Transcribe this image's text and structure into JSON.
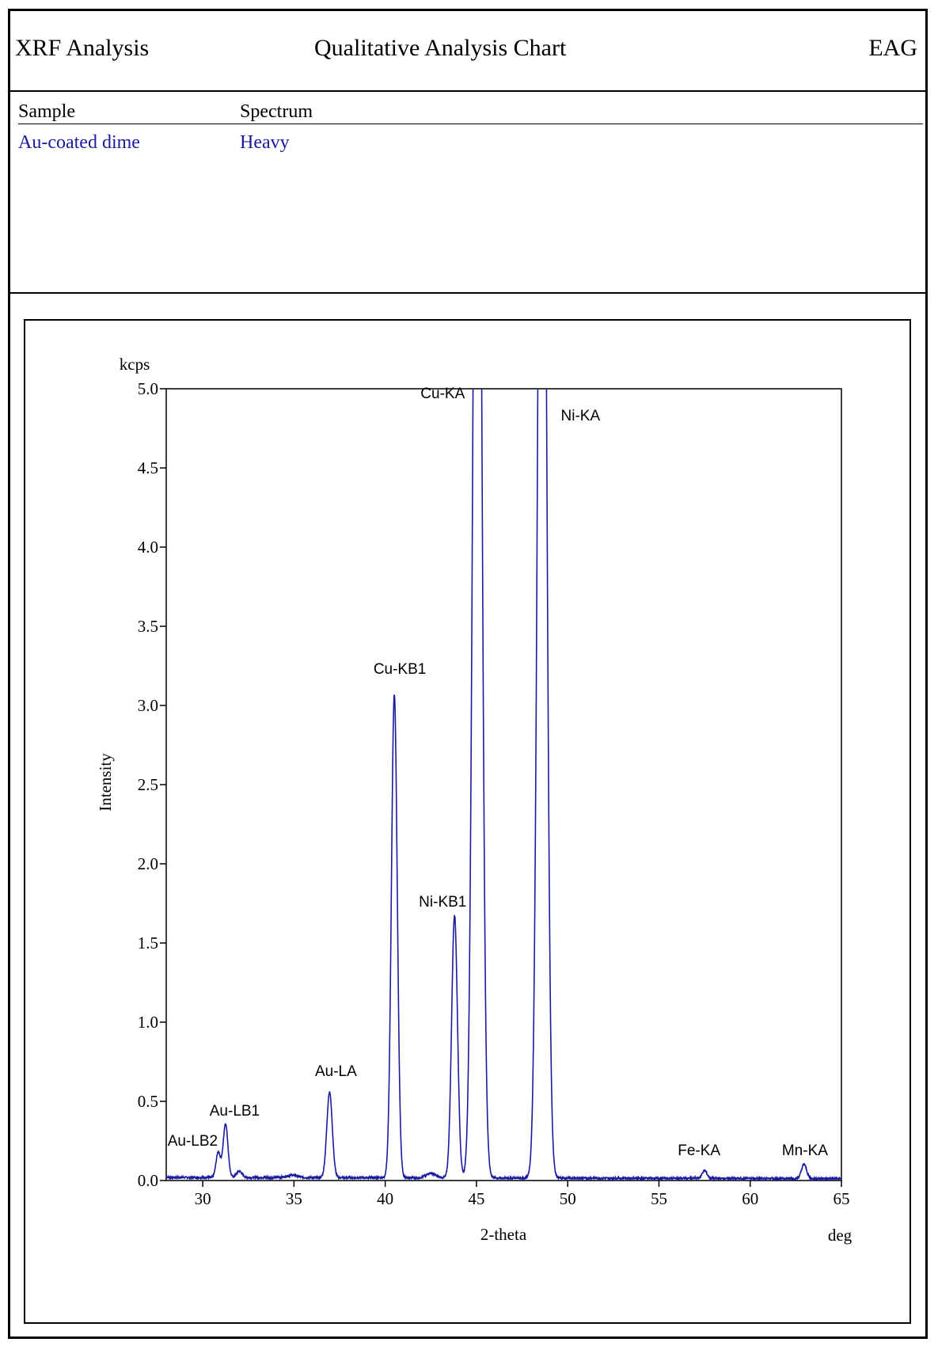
{
  "header": {
    "left": "XRF Analysis",
    "center": "Qualitative Analysis Chart",
    "right": "EAG"
  },
  "info": {
    "sample_label": "Sample",
    "spectrum_label": "Spectrum",
    "sample_value": "Au-coated dime",
    "spectrum_value": "Heavy"
  },
  "chart_data": {
    "type": "line",
    "xlabel": "2-theta",
    "x_unit": "deg",
    "ylabel": "Intensity",
    "y_unit": "kcps",
    "xlim": [
      28,
      65
    ],
    "ylim": [
      0,
      5.0
    ],
    "x_ticks": [
      30,
      35,
      40,
      45,
      50,
      55,
      60,
      65
    ],
    "y_ticks": [
      0.0,
      0.5,
      1.0,
      1.5,
      2.0,
      2.5,
      3.0,
      3.5,
      4.0,
      4.5,
      5.0
    ],
    "grid": false,
    "line_color": "#1a1aa0",
    "baseline": 0.02,
    "peaks": [
      {
        "x": 30.85,
        "y": 0.16,
        "width": 0.12
      },
      {
        "x": 31.25,
        "y": 0.34,
        "width": 0.13
      },
      {
        "x": 32.0,
        "y": 0.04,
        "width": 0.15
      },
      {
        "x": 34.9,
        "y": 0.015,
        "width": 0.3
      },
      {
        "x": 36.95,
        "y": 0.54,
        "width": 0.15
      },
      {
        "x": 40.5,
        "y": 3.05,
        "width": 0.16
      },
      {
        "x": 42.5,
        "y": 0.03,
        "width": 0.25
      },
      {
        "x": 43.8,
        "y": 1.66,
        "width": 0.16
      },
      {
        "x": 45.05,
        "y": 9.0,
        "width": 0.22
      },
      {
        "x": 48.6,
        "y": 9.0,
        "width": 0.22
      },
      {
        "x": 57.5,
        "y": 0.05,
        "width": 0.13
      },
      {
        "x": 62.95,
        "y": 0.09,
        "width": 0.14
      }
    ],
    "annotations": [
      {
        "label": "Au-LB2",
        "x": 29.45,
        "y": 0.22
      },
      {
        "label": "Au-LB1",
        "x": 31.75,
        "y": 0.41
      },
      {
        "label": "Au-LA",
        "x": 37.3,
        "y": 0.66
      },
      {
        "label": "Cu-KB1",
        "x": 40.8,
        "y": 3.2
      },
      {
        "label": "Ni-KB1",
        "x": 43.15,
        "y": 1.73
      },
      {
        "label": "Cu-KA",
        "x": 43.15,
        "y": 4.94
      },
      {
        "label": "Ni-KA",
        "x": 50.7,
        "y": 4.8
      },
      {
        "label": "Fe-KA",
        "x": 57.2,
        "y": 0.16
      },
      {
        "label": "Mn-KA",
        "x": 63.0,
        "y": 0.16
      }
    ]
  }
}
